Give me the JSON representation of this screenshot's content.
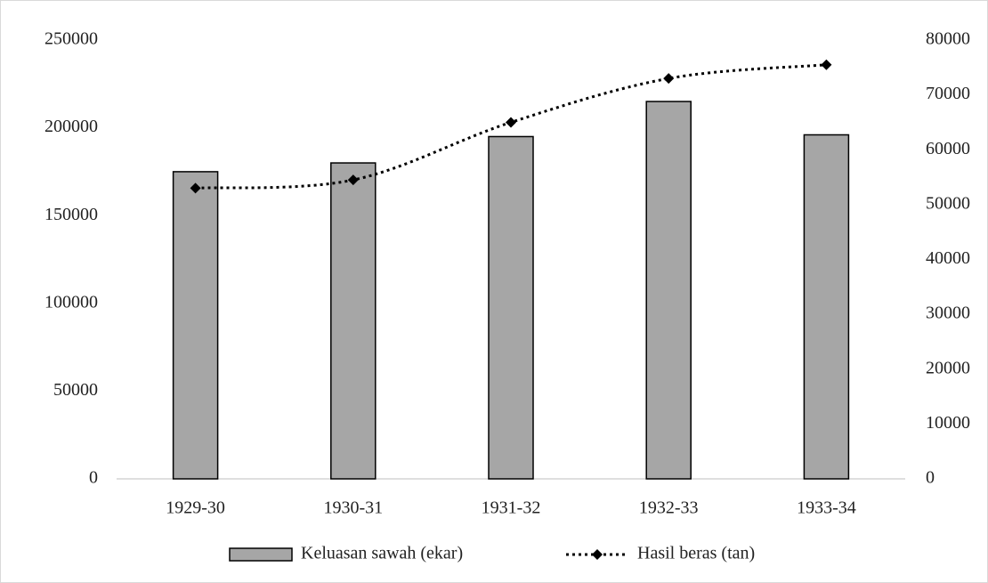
{
  "chart_data": {
    "type": "bar",
    "categories": [
      "1929-30",
      "1930-31",
      "1931-32",
      "1932-33",
      "1933-34"
    ],
    "series": [
      {
        "name": "Keluasan sawah (ekar)",
        "type": "bar",
        "color": "#a6a6a6",
        "values": [
          175000,
          180000,
          195000,
          215000,
          196000
        ]
      },
      {
        "name": "Hasil beras (tan)",
        "type": "line",
        "axis": "y2",
        "color": "#000000",
        "values": [
          53000,
          54500,
          65000,
          73000,
          75500
        ]
      }
    ],
    "ylim": [
      0,
      250000
    ],
    "yticks": [
      0,
      50000,
      100000,
      150000,
      200000,
      250000
    ],
    "y2lim": [
      0,
      80000
    ],
    "y2ticks": [
      0,
      10000,
      20000,
      30000,
      40000,
      50000,
      60000,
      70000,
      80000
    ],
    "grid": false,
    "legend": "bottom"
  }
}
